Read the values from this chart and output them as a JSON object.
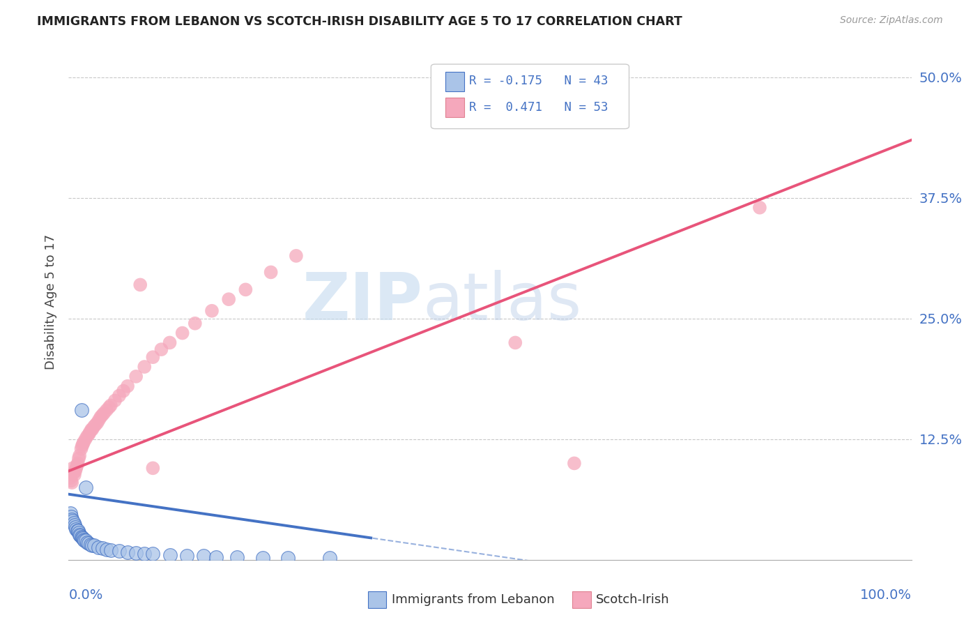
{
  "title": "IMMIGRANTS FROM LEBANON VS SCOTCH-IRISH DISABILITY AGE 5 TO 17 CORRELATION CHART",
  "source": "Source: ZipAtlas.com",
  "ylabel": "Disability Age 5 to 17",
  "xlim": [
    0,
    1.0
  ],
  "ylim": [
    0,
    0.535
  ],
  "ytick_values": [
    0.125,
    0.25,
    0.375,
    0.5
  ],
  "ytick_labels": [
    "12.5%",
    "25.0%",
    "37.5%",
    "50.0%"
  ],
  "color_lebanon": "#aac4e8",
  "color_scotch": "#f5a8bc",
  "line_color_lebanon": "#4472c4",
  "line_color_scotch": "#e8547a",
  "watermark_zip": "ZIP",
  "watermark_atlas": "atlas",
  "lebanon_line_x0": 0.0,
  "lebanon_line_y0": 0.068,
  "lebanon_line_x1": 0.38,
  "lebanon_line_y1": 0.02,
  "scotch_line_x0": 0.0,
  "scotch_line_y0": 0.092,
  "scotch_line_x1": 1.0,
  "scotch_line_y1": 0.435,
  "lebanon_points_x": [
    0.002,
    0.003,
    0.004,
    0.005,
    0.006,
    0.007,
    0.008,
    0.009,
    0.01,
    0.011,
    0.012,
    0.013,
    0.014,
    0.015,
    0.016,
    0.017,
    0.018,
    0.019,
    0.02,
    0.022,
    0.024,
    0.026,
    0.028,
    0.03,
    0.035,
    0.04,
    0.045,
    0.05,
    0.06,
    0.07,
    0.08,
    0.09,
    0.1,
    0.12,
    0.14,
    0.16,
    0.175,
    0.2,
    0.23,
    0.26,
    0.015,
    0.02,
    0.31
  ],
  "lebanon_points_y": [
    0.048,
    0.045,
    0.042,
    0.04,
    0.038,
    0.036,
    0.034,
    0.032,
    0.03,
    0.03,
    0.028,
    0.026,
    0.025,
    0.024,
    0.023,
    0.022,
    0.021,
    0.02,
    0.02,
    0.018,
    0.017,
    0.016,
    0.015,
    0.015,
    0.013,
    0.012,
    0.011,
    0.01,
    0.009,
    0.008,
    0.007,
    0.006,
    0.006,
    0.005,
    0.004,
    0.004,
    0.003,
    0.003,
    0.002,
    0.002,
    0.155,
    0.075,
    0.002
  ],
  "scotch_points_x": [
    0.002,
    0.003,
    0.004,
    0.005,
    0.006,
    0.007,
    0.008,
    0.009,
    0.01,
    0.011,
    0.012,
    0.013,
    0.015,
    0.016,
    0.017,
    0.018,
    0.02,
    0.022,
    0.024,
    0.025,
    0.027,
    0.028,
    0.03,
    0.032,
    0.034,
    0.036,
    0.038,
    0.04,
    0.042,
    0.045,
    0.048,
    0.05,
    0.055,
    0.06,
    0.065,
    0.07,
    0.08,
    0.09,
    0.1,
    0.11,
    0.12,
    0.135,
    0.15,
    0.17,
    0.19,
    0.21,
    0.24,
    0.27,
    0.53,
    0.085,
    0.1,
    0.82,
    0.6
  ],
  "scotch_points_y": [
    0.085,
    0.082,
    0.08,
    0.095,
    0.09,
    0.088,
    0.092,
    0.095,
    0.098,
    0.1,
    0.105,
    0.108,
    0.115,
    0.118,
    0.12,
    0.122,
    0.125,
    0.128,
    0.13,
    0.132,
    0.135,
    0.135,
    0.138,
    0.14,
    0.142,
    0.145,
    0.148,
    0.15,
    0.152,
    0.155,
    0.158,
    0.16,
    0.165,
    0.17,
    0.175,
    0.18,
    0.19,
    0.2,
    0.21,
    0.218,
    0.225,
    0.235,
    0.245,
    0.258,
    0.27,
    0.28,
    0.298,
    0.315,
    0.225,
    0.285,
    0.095,
    0.365,
    0.1
  ]
}
